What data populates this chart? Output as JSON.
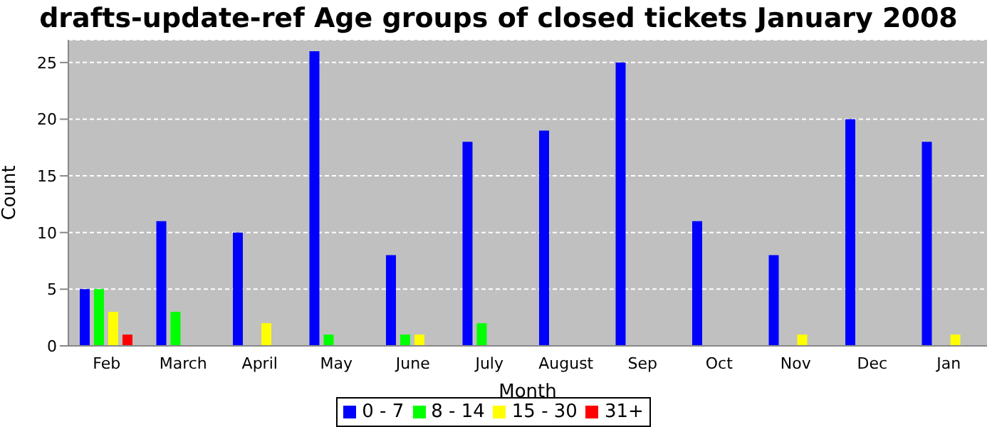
{
  "chart_data": {
    "type": "bar",
    "title": "drafts-update-ref Age groups of closed tickets January 2008",
    "xlabel": "Month",
    "ylabel": "Count",
    "categories": [
      "Feb",
      "March",
      "April",
      "May",
      "June",
      "July",
      "August",
      "Sep",
      "Oct",
      "Nov",
      "Dec",
      "Jan"
    ],
    "series": [
      {
        "name": "0 - 7",
        "color": "#0000ff",
        "values": [
          5,
          11,
          10,
          26,
          8,
          18,
          19,
          25,
          11,
          8,
          20,
          18
        ]
      },
      {
        "name": "8 - 14",
        "color": "#00ff00",
        "values": [
          5,
          3,
          0,
          1,
          1,
          2,
          0,
          0,
          0,
          0,
          0,
          0
        ]
      },
      {
        "name": "15 - 30",
        "color": "#ffff00",
        "values": [
          3,
          0,
          2,
          0,
          1,
          0,
          0,
          0,
          0,
          1,
          0,
          1
        ]
      },
      {
        "name": "31+",
        "color": "#ff0000",
        "values": [
          1,
          0,
          0,
          0,
          0,
          0,
          0,
          0,
          0,
          0,
          0,
          0
        ]
      }
    ],
    "ylim": [
      0,
      27
    ],
    "yticks": [
      0,
      5,
      10,
      15,
      20,
      25
    ],
    "grid": "y",
    "legend": "bottom"
  }
}
